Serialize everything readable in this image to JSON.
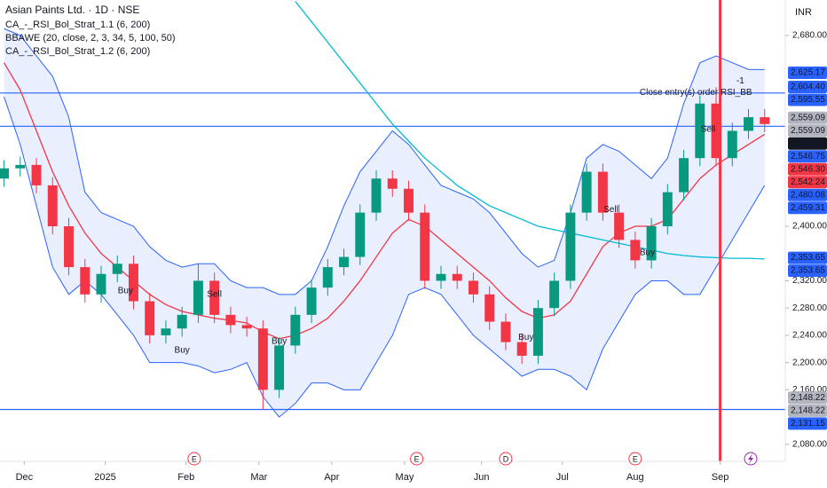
{
  "chart_data": {
    "type": "candlestick",
    "title": "Asian Paints Ltd. · 1D · NSE",
    "indicators": [
      "CA_-_RSI_Bol_Strat_1.1 (6, 200)",
      "BBAWE (20, close, 2, 3, 34, 5, 100, 50)",
      "CA_-_RSI_Bol_Strat_1.2 (6, 200)"
    ],
    "currency": "INR",
    "x": [
      0,
      4,
      8,
      12,
      16,
      20,
      24,
      28,
      32,
      36,
      40,
      44,
      48,
      52,
      56,
      60,
      64,
      68,
      72,
      76,
      80,
      84,
      88,
      92,
      96,
      100,
      104,
      108,
      112,
      116,
      120,
      124,
      128,
      132,
      136,
      140,
      144,
      148,
      152,
      156,
      160,
      164,
      168,
      172,
      176,
      180,
      184,
      188
    ],
    "open": [
      2470,
      2485,
      2490,
      2460,
      2400,
      2340,
      2300,
      2330,
      2345,
      2290,
      2240,
      2250,
      2270,
      2320,
      2270,
      2255,
      2250,
      2160,
      2225,
      2270,
      2310,
      2340,
      2355,
      2420,
      2470,
      2455,
      2420,
      2320,
      2330,
      2320,
      2300,
      2260,
      2230,
      2210,
      2280,
      2320,
      2420,
      2480,
      2420,
      2380,
      2350,
      2400,
      2450,
      2500,
      2580,
      2500,
      2540,
      2560
    ],
    "high": [
      2497,
      2502,
      2500,
      2472,
      2412,
      2352,
      2342,
      2357,
      2357,
      2302,
      2262,
      2282,
      2345,
      2332,
      2282,
      2267,
      2262,
      2237,
      2282,
      2322,
      2352,
      2367,
      2432,
      2482,
      2482,
      2467,
      2432,
      2342,
      2342,
      2332,
      2312,
      2272,
      2242,
      2292,
      2332,
      2432,
      2492,
      2492,
      2432,
      2392,
      2412,
      2462,
      2512,
      2592,
      2604,
      2552,
      2572,
      2572
    ],
    "low": [
      2458,
      2473,
      2448,
      2388,
      2328,
      2288,
      2288,
      2318,
      2278,
      2228,
      2228,
      2238,
      2258,
      2258,
      2243,
      2238,
      2131,
      2148,
      2213,
      2258,
      2298,
      2328,
      2343,
      2408,
      2443,
      2408,
      2308,
      2308,
      2308,
      2288,
      2248,
      2218,
      2198,
      2198,
      2268,
      2308,
      2408,
      2408,
      2368,
      2338,
      2338,
      2388,
      2438,
      2488,
      2488,
      2488,
      2528,
      2538
    ],
    "close": [
      2485,
      2490,
      2460,
      2400,
      2340,
      2300,
      2330,
      2345,
      2290,
      2240,
      2250,
      2270,
      2320,
      2270,
      2255,
      2250,
      2160,
      2225,
      2270,
      2310,
      2340,
      2355,
      2420,
      2470,
      2455,
      2420,
      2320,
      2330,
      2320,
      2300,
      2260,
      2230,
      2210,
      2280,
      2320,
      2420,
      2480,
      2420,
      2380,
      2350,
      2400,
      2450,
      2500,
      2580,
      2500,
      2540,
      2560,
      2550
    ],
    "up_color": "#089981",
    "down_color": "#f23645",
    "band": {
      "color": "#2962ff",
      "upper": [
        2690,
        2680,
        2650,
        2620,
        2560,
        2450,
        2420,
        2410,
        2400,
        2370,
        2350,
        2340,
        2345,
        2345,
        2320,
        2310,
        2310,
        2300,
        2300,
        2320,
        2370,
        2430,
        2480,
        2510,
        2540,
        2520,
        2490,
        2460,
        2450,
        2440,
        2420,
        2390,
        2360,
        2340,
        2350,
        2420,
        2500,
        2520,
        2510,
        2490,
        2470,
        2500,
        2580,
        2640,
        2650,
        2640,
        2630,
        2630
      ],
      "lower": [
        2590,
        2520,
        2430,
        2340,
        2300,
        2320,
        2300,
        2270,
        2240,
        2200,
        2200,
        2200,
        2195,
        2185,
        2190,
        2200,
        2150,
        2120,
        2140,
        2170,
        2170,
        2160,
        2160,
        2200,
        2240,
        2300,
        2310,
        2300,
        2270,
        2240,
        2220,
        2200,
        2180,
        2190,
        2190,
        2180,
        2160,
        2220,
        2260,
        2300,
        2320,
        2320,
        2300,
        2300,
        2340,
        2380,
        2420,
        2460
      ]
    },
    "lines": [
      {
        "color": "#f23645",
        "values": [
          2640,
          2600,
          2540,
          2480,
          2430,
          2390,
          2360,
          2340,
          2320,
          2300,
          2285,
          2275,
          2270,
          2265,
          2262,
          2258,
          2245,
          2235,
          2240,
          2250,
          2265,
          2290,
          2320,
          2355,
          2390,
          2410,
          2400,
          2380,
          2360,
          2340,
          2320,
          2295,
          2275,
          2265,
          2270,
          2290,
          2330,
          2370,
          2390,
          2400,
          2400,
          2410,
          2440,
          2470,
          2490,
          2505,
          2520,
          2535
        ]
      },
      {
        "color": "#00bcd4",
        "values": [
          null,
          null,
          null,
          null,
          null,
          null,
          null,
          null,
          null,
          null,
          null,
          null,
          null,
          null,
          null,
          null,
          null,
          null,
          2730,
          2700,
          2670,
          2640,
          2610,
          2580,
          2550,
          2525,
          2500,
          2480,
          2460,
          2445,
          2430,
          2420,
          2410,
          2400,
          2395,
          2390,
          2385,
          2380,
          2375,
          2370,
          2365,
          2360,
          2357,
          2355,
          2354,
          2353,
          2353,
          2352
        ]
      }
    ],
    "hlines": [
      {
        "value": 2595.55,
        "color": "#2962ff"
      },
      {
        "value": 2546.75,
        "color": "#2962ff"
      },
      {
        "value": 2131.15,
        "color": "#2962ff"
      }
    ],
    "vline": {
      "x": 177,
      "color": "#f23645"
    },
    "xlim": [
      -1,
      193.1
    ],
    "ylim": [
      2055,
      2732
    ],
    "xticks": [
      {
        "value": 5,
        "label": "Dec"
      },
      {
        "value": 25,
        "label": "2025"
      },
      {
        "value": 45,
        "label": "Feb"
      },
      {
        "value": 63,
        "label": "Mar"
      },
      {
        "value": 81,
        "label": "Apr"
      },
      {
        "value": 99,
        "label": "May"
      },
      {
        "value": 118,
        "label": "Jun"
      },
      {
        "value": 138,
        "label": "Jul"
      },
      {
        "value": 156,
        "label": "Aug"
      },
      {
        "value": 177,
        "label": "Sep"
      }
    ],
    "yticks": [
      {
        "value": 2080,
        "label": "2,080.00"
      },
      {
        "value": 2160,
        "label": "2,160.00"
      },
      {
        "value": 2200,
        "label": "2,200.00"
      },
      {
        "value": 2240,
        "label": "2,240.00"
      },
      {
        "value": 2280,
        "label": "2,280.00"
      },
      {
        "value": 2320,
        "label": "2,320.00"
      },
      {
        "value": 2400,
        "label": "2,400.00"
      },
      {
        "value": 2680,
        "label": "2,680.00"
      }
    ],
    "price_labels": [
      {
        "value": 2625.17,
        "label": "2,625.17",
        "color": "#2962ff"
      },
      {
        "value": 2604.4,
        "label": "2,604.40",
        "color": "#2962ff"
      },
      {
        "value": 2595.55,
        "label": "2,595.55",
        "color": "#2962ff"
      },
      {
        "value": 2559.09,
        "label": "2,559.09",
        "color": "#b2b5be"
      },
      {
        "value": 2559.09,
        "label": "2,559.09",
        "color": "#b2b5be"
      },
      {
        "value": 2547.98,
        "label": "2,547.98",
        "color": "#131722"
      },
      {
        "value": 2546.75,
        "label": "2,546.75",
        "color": "#2962ff"
      },
      {
        "value": 2546.3,
        "label": "2,546.30",
        "color": "#f23645"
      },
      {
        "value": 2542.24,
        "label": "2,542.24",
        "color": "#f23645"
      },
      {
        "value": 2480.08,
        "label": "2,480.08",
        "color": "#2962ff"
      },
      {
        "value": 2459.31,
        "label": "2,459.31",
        "color": "#2962ff"
      },
      {
        "value": 2353.65,
        "label": "2,353.65",
        "color": "#2962ff"
      },
      {
        "value": 2353.65,
        "label": "2,353.65",
        "color": "#2962ff"
      },
      {
        "value": 2148.22,
        "label": "2,148.22",
        "color": "#b2b5be"
      },
      {
        "value": 2148.22,
        "label": "2,148.22",
        "color": "#b2b5be"
      },
      {
        "value": 2131.15,
        "label": "2,131.15",
        "color": "#2962ff"
      }
    ],
    "annotations": [
      {
        "text": "Buy",
        "x": 30,
        "y": 2305,
        "color": "#089981"
      },
      {
        "text": "Buy",
        "x": 44,
        "y": 2218,
        "color": "#089981"
      },
      {
        "text": "Sell",
        "x": 52,
        "y": 2300,
        "color": "#f23645"
      },
      {
        "text": "Buy",
        "x": 68,
        "y": 2231,
        "color": "#089981"
      },
      {
        "text": "Buy",
        "x": 129,
        "y": 2237,
        "color": "#089981"
      },
      {
        "text": "Sell",
        "x": 150,
        "y": 2424,
        "color": "#f23645"
      },
      {
        "text": "Buy",
        "x": 159,
        "y": 2361,
        "color": "#089981"
      },
      {
        "text": "Sell",
        "x": 174,
        "y": 2542,
        "color": "#f23645"
      },
      {
        "text": "Close entry(s) order RSI_BB",
        "x": 171,
        "y": 2596,
        "color": "#131722"
      },
      {
        "text": "-1",
        "x": 182,
        "y": 2613,
        "color": "#131722"
      }
    ],
    "events": [
      {
        "label": "E",
        "x": 47
      },
      {
        "label": "E",
        "x": 102
      },
      {
        "label": "D",
        "x": 124
      },
      {
        "label": "E",
        "x": 156
      }
    ]
  }
}
